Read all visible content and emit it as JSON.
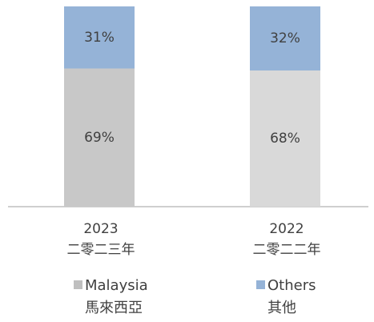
{
  "chart_data": {
    "type": "stacked_bar",
    "categories": [
      [
        "2023",
        "二零二三年"
      ],
      [
        "2022",
        "二零二二年"
      ]
    ],
    "series": [
      {
        "name": [
          "Malaysia",
          "馬來西亞"
        ],
        "color": "#bfbfbf",
        "colors": [
          "#c8c8c8",
          "#d9d9d9"
        ],
        "values": [
          69,
          68
        ],
        "value_labels": [
          "69%",
          "68%"
        ]
      },
      {
        "name": [
          "Others",
          "其他"
        ],
        "color": "#95b3d7",
        "values": [
          31,
          32
        ],
        "value_labels": [
          "31%",
          "32%"
        ]
      }
    ],
    "ylim": [
      0,
      100
    ]
  }
}
